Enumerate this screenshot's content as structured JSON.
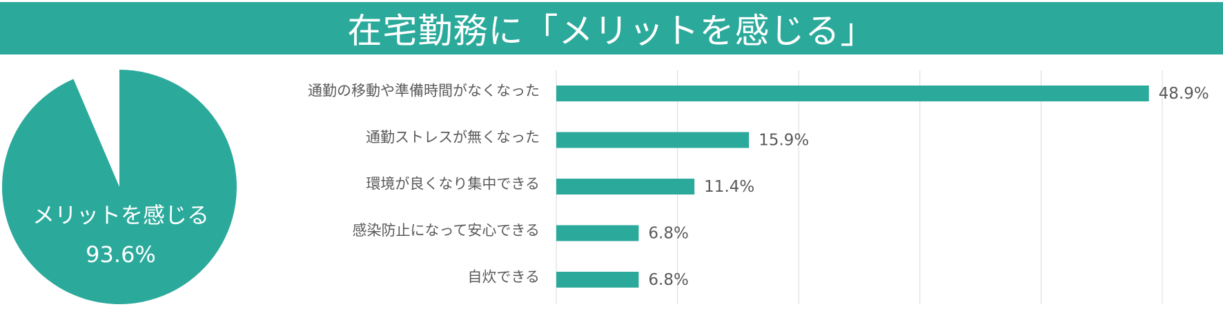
{
  "header": {
    "title": "在宅勤務に「メリットを感じる」"
  },
  "colors": {
    "accent": "#2baa9c",
    "background": "#ffffff",
    "label_text": "#595959",
    "gridline": "#d9d9d9"
  },
  "chart_data": [
    {
      "type": "pie",
      "slices": [
        {
          "label": "メリットを感じる",
          "value": 93.6,
          "value_label": "93.6%"
        },
        {
          "label": "",
          "value": 6.4,
          "value_label": ""
        }
      ],
      "legend": "none"
    },
    {
      "type": "bar",
      "orientation": "horizontal",
      "categories": [
        "通勤の移動や準備時間がなくなった",
        "通勤ストレスが無くなった",
        "環境が良くなり集中できる",
        "感染防止になって安心できる",
        "自炊できる"
      ],
      "values": [
        48.9,
        15.9,
        11.4,
        6.8,
        6.8
      ],
      "value_labels": [
        "48.9%",
        "15.9%",
        "11.4%",
        "6.8%",
        "6.8%"
      ],
      "xlim": [
        0,
        50
      ],
      "grid": true,
      "legend": "none"
    }
  ]
}
